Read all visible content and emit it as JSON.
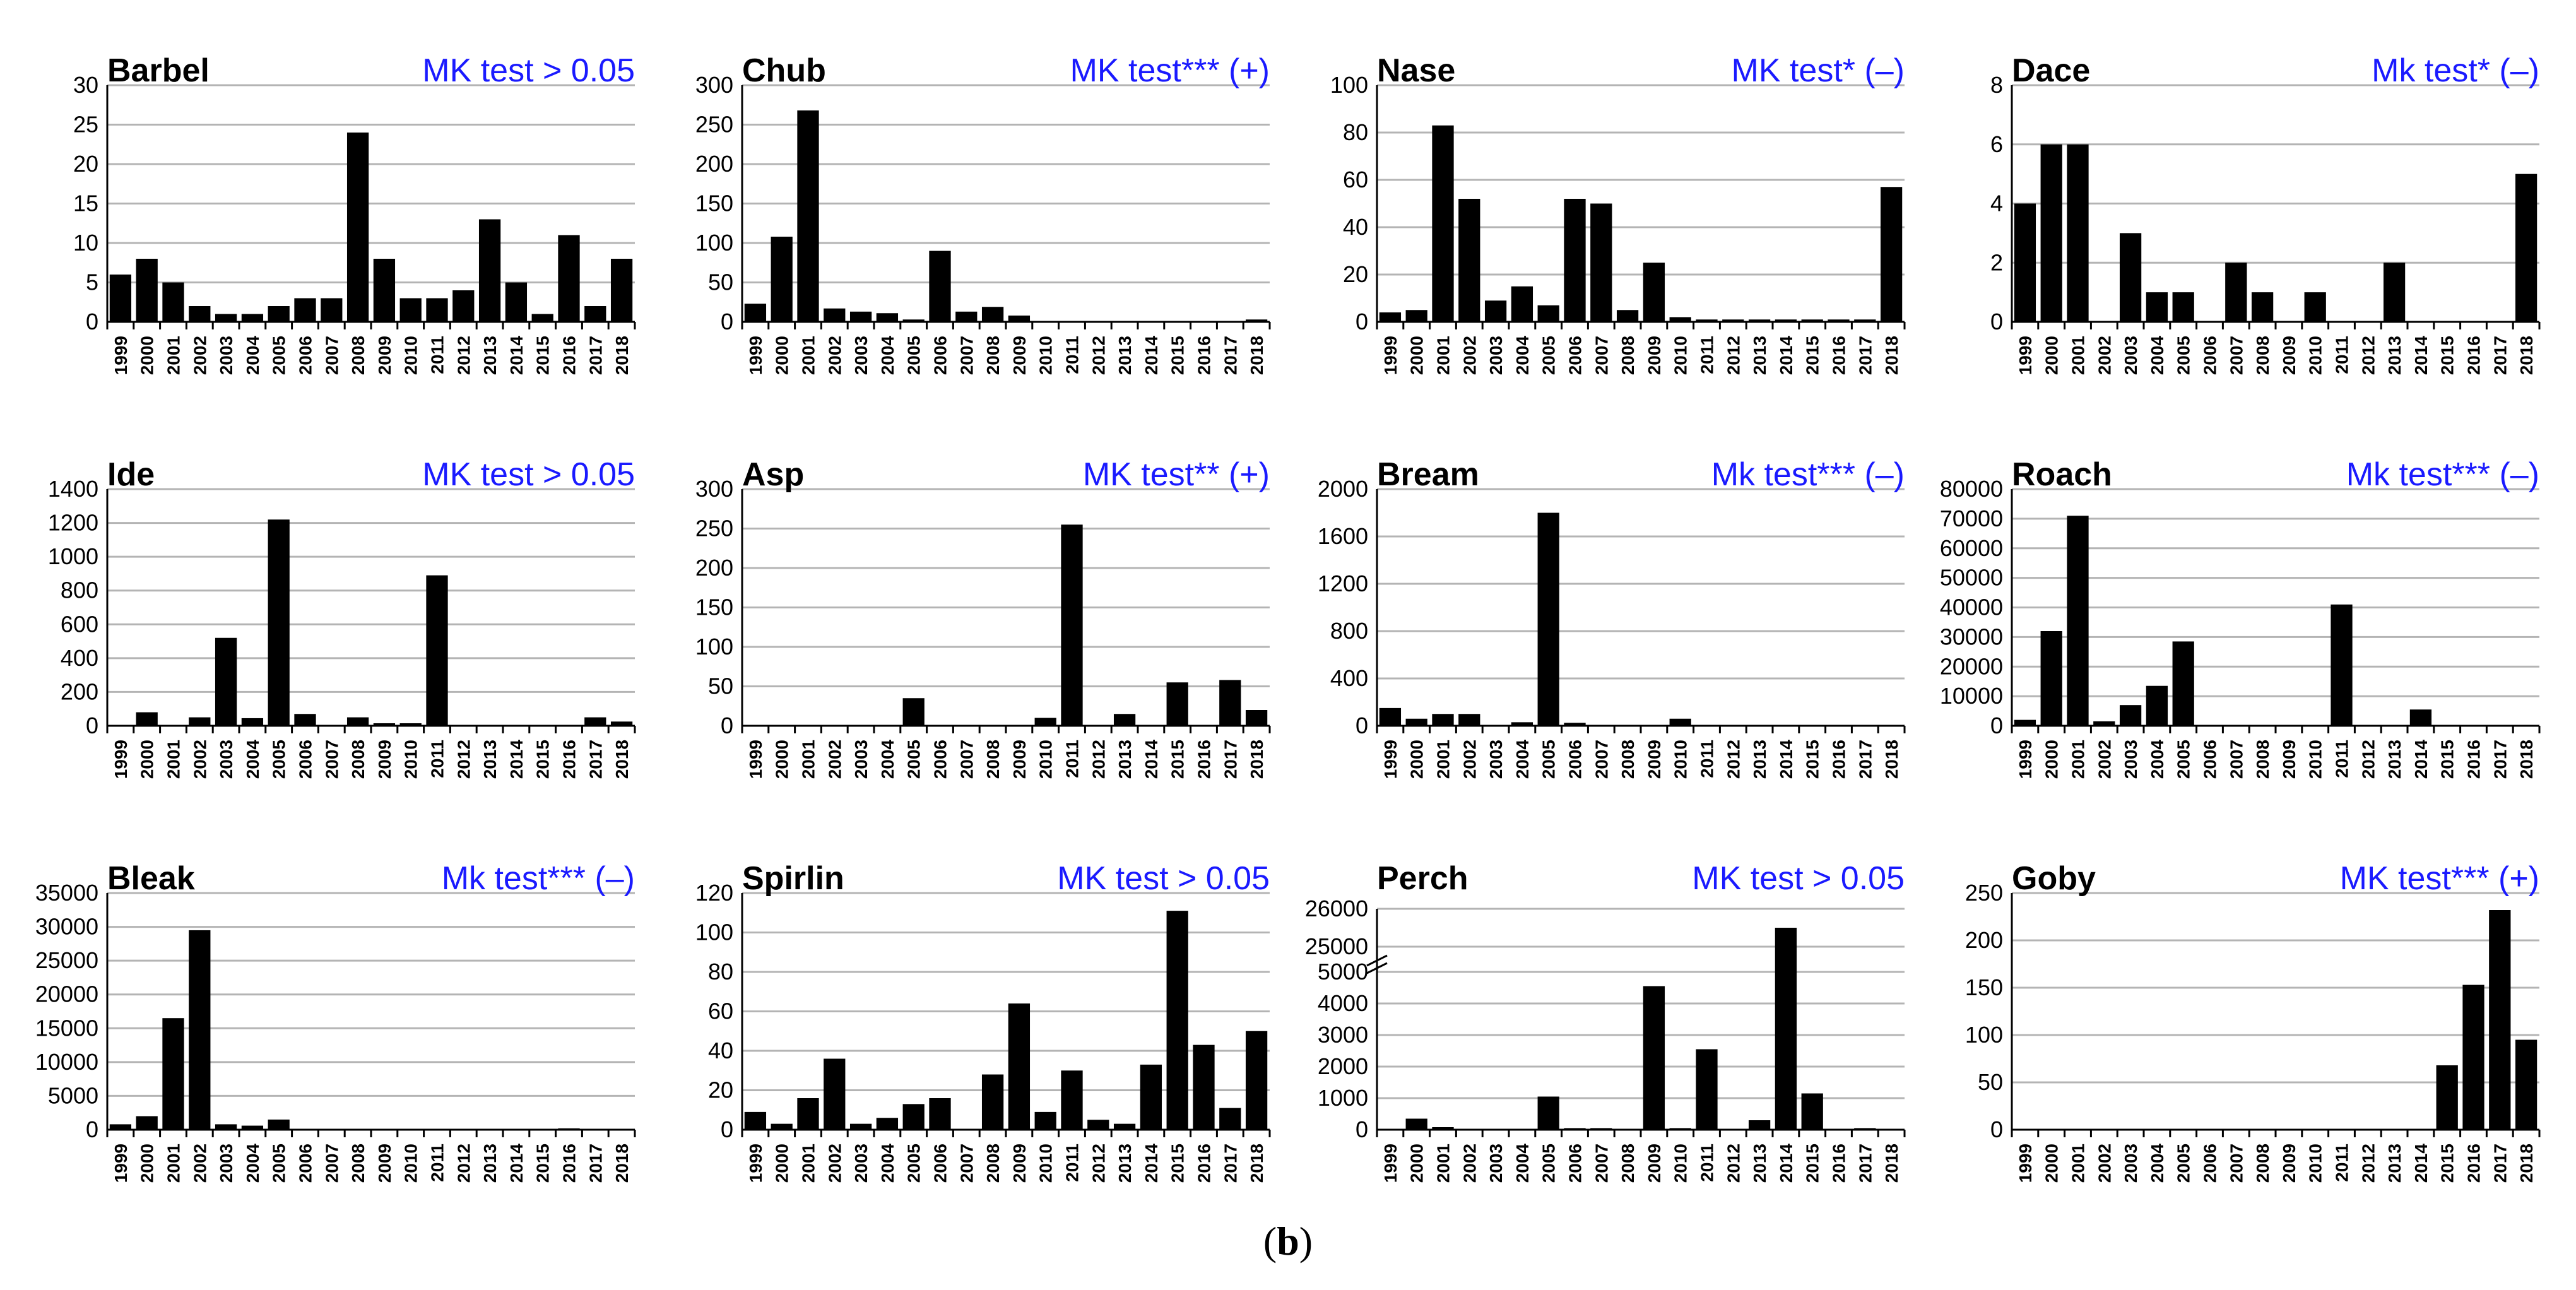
{
  "caption": {
    "open": "(",
    "letter": "b",
    "close": ")"
  },
  "colors": {
    "bar": "#000000",
    "grid": "#b4b4b4",
    "axis": "#000000",
    "mk_text": "#1a1aff",
    "title": "#000000"
  },
  "chart_data": [
    {
      "type": "bar",
      "title": "Barbel",
      "annotation": "MK test > 0.05",
      "categories": [
        "1999",
        "2000",
        "2001",
        "2002",
        "2003",
        "2004",
        "2005",
        "2006",
        "2007",
        "2008",
        "2009",
        "2010",
        "2011",
        "2012",
        "2013",
        "2014",
        "2015",
        "2016",
        "2017",
        "2018"
      ],
      "values": [
        6,
        8,
        5,
        2,
        1,
        1,
        2,
        3,
        3,
        24,
        8,
        3,
        3,
        4,
        13,
        5,
        1,
        11,
        2,
        8
      ],
      "ylim": [
        0,
        30
      ],
      "yticks": [
        0,
        5,
        10,
        15,
        20,
        25,
        30
      ],
      "ytick_labels": [
        "0",
        "5",
        "10",
        "15",
        "20",
        "25",
        "30"
      ],
      "grid": true
    },
    {
      "type": "bar",
      "title": "Chub",
      "annotation": "MK test*** (+)",
      "categories": [
        "1999",
        "2000",
        "2001",
        "2002",
        "2003",
        "2004",
        "2005",
        "2006",
        "2007",
        "2008",
        "2009",
        "2010",
        "2011",
        "2012",
        "2013",
        "2014",
        "2015",
        "2016",
        "2017",
        "2018"
      ],
      "values": [
        23,
        108,
        268,
        17,
        13,
        11,
        3,
        90,
        13,
        19,
        8,
        1,
        1,
        1,
        1,
        1,
        1,
        1,
        1,
        3
      ],
      "ylim": [
        0,
        300
      ],
      "yticks": [
        0,
        50,
        100,
        150,
        200,
        250,
        300
      ],
      "ytick_labels": [
        "0",
        "50",
        "100",
        "150",
        "200",
        "250",
        "300"
      ],
      "grid": true
    },
    {
      "type": "bar",
      "title": "Nase",
      "annotation": "MK test* (–)",
      "categories": [
        "1999",
        "2000",
        "2001",
        "2002",
        "2003",
        "2004",
        "2005",
        "2006",
        "2007",
        "2008",
        "2009",
        "2010",
        "2011",
        "2012",
        "2013",
        "2014",
        "2015",
        "2016",
        "2017",
        "2018"
      ],
      "values": [
        4,
        5,
        83,
        52,
        9,
        15,
        7,
        52,
        50,
        5,
        25,
        2,
        1,
        1,
        1,
        1,
        1,
        1,
        1,
        57
      ],
      "ylim": [
        0,
        100
      ],
      "yticks": [
        0,
        20,
        40,
        60,
        80,
        100
      ],
      "ytick_labels": [
        "0",
        "20",
        "40",
        "60",
        "80",
        "100"
      ],
      "grid": true
    },
    {
      "type": "bar",
      "title": "Dace",
      "annotation": "Mk test* (–)",
      "categories": [
        "1999",
        "2000",
        "2001",
        "2002",
        "2003",
        "2004",
        "2005",
        "2006",
        "2007",
        "2008",
        "2009",
        "2010",
        "2011",
        "2012",
        "2013",
        "2014",
        "2015",
        "2016",
        "2017",
        "2018"
      ],
      "values": [
        4,
        6,
        6,
        0,
        3,
        1,
        1,
        0,
        2,
        1,
        0,
        1,
        0,
        0,
        2,
        0,
        0,
        0,
        0,
        5
      ],
      "ylim": [
        0,
        8
      ],
      "yticks": [
        0,
        2,
        4,
        6,
        8
      ],
      "ytick_labels": [
        "0",
        "2",
        "4",
        "6",
        "8"
      ],
      "grid": true
    },
    {
      "type": "bar",
      "title": "Ide",
      "annotation": "MK test > 0.05",
      "categories": [
        "1999",
        "2000",
        "2001",
        "2002",
        "2003",
        "2004",
        "2005",
        "2006",
        "2007",
        "2008",
        "2009",
        "2010",
        "2011",
        "2012",
        "2013",
        "2014",
        "2015",
        "2016",
        "2017",
        "2018"
      ],
      "values": [
        5,
        80,
        5,
        50,
        520,
        45,
        1220,
        70,
        5,
        50,
        15,
        15,
        890,
        5,
        5,
        5,
        5,
        5,
        50,
        25
      ],
      "ylim": [
        0,
        1400
      ],
      "yticks": [
        0,
        200,
        400,
        600,
        800,
        1000,
        1200,
        1400
      ],
      "ytick_labels": [
        "0",
        "200",
        "400",
        "600",
        "800",
        "1000",
        "1200",
        "1400"
      ],
      "grid": true
    },
    {
      "type": "bar",
      "title": "Asp",
      "annotation": "MK test** (+)",
      "categories": [
        "1999",
        "2000",
        "2001",
        "2002",
        "2003",
        "2004",
        "2005",
        "2006",
        "2007",
        "2008",
        "2009",
        "2010",
        "2011",
        "2012",
        "2013",
        "2014",
        "2015",
        "2016",
        "2017",
        "2018"
      ],
      "values": [
        0,
        0,
        0,
        0,
        0,
        0,
        35,
        0,
        0,
        0,
        0,
        10,
        255,
        0,
        15,
        0,
        55,
        0,
        58,
        20
      ],
      "ylim": [
        0,
        300
      ],
      "yticks": [
        0,
        50,
        100,
        150,
        200,
        250,
        300
      ],
      "ytick_labels": [
        "0",
        "50",
        "100",
        "150",
        "200",
        "250",
        "300"
      ],
      "grid": true
    },
    {
      "type": "bar",
      "title": "Bream",
      "annotation": "Mk test*** (–)",
      "categories": [
        "1999",
        "2000",
        "2001",
        "2002",
        "2003",
        "2004",
        "2005",
        "2006",
        "2007",
        "2008",
        "2009",
        "2010",
        "2011",
        "2012",
        "2013",
        "2014",
        "2015",
        "2016",
        "2017",
        "2018"
      ],
      "values": [
        150,
        60,
        100,
        100,
        5,
        30,
        1800,
        25,
        5,
        5,
        5,
        60,
        5,
        5,
        5,
        5,
        5,
        5,
        5,
        5
      ],
      "ylim": [
        0,
        2000
      ],
      "yticks": [
        0,
        400,
        800,
        1200,
        1600,
        2000
      ],
      "ytick_labels": [
        "0",
        "400",
        "800",
        "1200",
        "1600",
        "2000"
      ],
      "grid": true
    },
    {
      "type": "bar",
      "title": "Roach",
      "annotation": "Mk test*** (–)",
      "categories": [
        "1999",
        "2000",
        "2001",
        "2002",
        "2003",
        "2004",
        "2005",
        "2006",
        "2007",
        "2008",
        "2009",
        "2010",
        "2011",
        "2012",
        "2013",
        "2014",
        "2015",
        "2016",
        "2017",
        "2018"
      ],
      "values": [
        2000,
        32000,
        71000,
        1500,
        7000,
        13500,
        28500,
        0,
        0,
        0,
        0,
        0,
        41000,
        0,
        0,
        5500,
        0,
        0,
        0,
        0
      ],
      "ylim": [
        0,
        80000
      ],
      "yticks": [
        0,
        10000,
        20000,
        30000,
        40000,
        50000,
        60000,
        70000,
        80000
      ],
      "ytick_labels": [
        "0",
        "10000",
        "20000",
        "30000",
        "40000",
        "50000",
        "60000",
        "70000",
        "80000"
      ],
      "grid": true
    },
    {
      "type": "bar",
      "title": "Bleak",
      "annotation": "Mk test*** (–)",
      "categories": [
        "1999",
        "2000",
        "2001",
        "2002",
        "2003",
        "2004",
        "2005",
        "2006",
        "2007",
        "2008",
        "2009",
        "2010",
        "2011",
        "2012",
        "2013",
        "2014",
        "2015",
        "2016",
        "2017",
        "2018"
      ],
      "values": [
        800,
        2000,
        16500,
        29500,
        800,
        600,
        1500,
        50,
        50,
        50,
        50,
        50,
        50,
        50,
        50,
        50,
        50,
        200,
        50,
        50
      ],
      "ylim": [
        0,
        35000
      ],
      "yticks": [
        0,
        5000,
        10000,
        15000,
        20000,
        25000,
        30000,
        35000
      ],
      "ytick_labels": [
        "0",
        "5000",
        "10000",
        "15000",
        "20000",
        "25000",
        "30000",
        "35000"
      ],
      "grid": true
    },
    {
      "type": "bar",
      "title": "Spirlin",
      "annotation": "MK test > 0.05",
      "categories": [
        "1999",
        "2000",
        "2001",
        "2002",
        "2003",
        "2004",
        "2005",
        "2006",
        "2007",
        "2008",
        "2009",
        "2010",
        "2011",
        "2012",
        "2013",
        "2014",
        "2015",
        "2016",
        "2017",
        "2018"
      ],
      "values": [
        9,
        3,
        16,
        36,
        3,
        6,
        13,
        16,
        0,
        28,
        64,
        9,
        30,
        5,
        3,
        33,
        111,
        43,
        11,
        50
      ],
      "ylim": [
        0,
        120
      ],
      "yticks": [
        0,
        20,
        40,
        60,
        80,
        100,
        120
      ],
      "ytick_labels": [
        "0",
        "20",
        "40",
        "60",
        "80",
        "100",
        "120"
      ],
      "grid": true
    },
    {
      "type": "bar",
      "title": "Perch",
      "annotation": "MK test > 0.05",
      "axis_break": true,
      "categories": [
        "1999",
        "2000",
        "2001",
        "2002",
        "2003",
        "2004",
        "2005",
        "2006",
        "2007",
        "2008",
        "2009",
        "2010",
        "2011",
        "2012",
        "2013",
        "2014",
        "2015",
        "2016",
        "2017",
        "2018"
      ],
      "values": [
        0,
        350,
        80,
        0,
        0,
        0,
        1050,
        50,
        50,
        0,
        4550,
        50,
        2550,
        0,
        300,
        25500,
        1150,
        0,
        50,
        0
      ],
      "ylim": [
        0,
        5000
      ],
      "yticks": [
        0,
        1000,
        2000,
        3000,
        4000,
        5000
      ],
      "ytick_labels": [
        "0",
        "1000",
        "2000",
        "3000",
        "4000",
        "5000"
      ],
      "upper_ytick_label": "25000",
      "top_ytick_label": "26000",
      "grid": true
    },
    {
      "type": "bar",
      "title": "Goby",
      "annotation": "MK test*** (+)",
      "categories": [
        "1999",
        "2000",
        "2001",
        "2002",
        "2003",
        "2004",
        "2005",
        "2006",
        "2007",
        "2008",
        "2009",
        "2010",
        "2011",
        "2012",
        "2013",
        "2014",
        "2015",
        "2016",
        "2017",
        "2018"
      ],
      "values": [
        0,
        0,
        0,
        0,
        0,
        0,
        0,
        0,
        0,
        0,
        0,
        0,
        0,
        0,
        0,
        0,
        68,
        153,
        232,
        95
      ],
      "ylim": [
        0,
        250
      ],
      "yticks": [
        0,
        50,
        100,
        150,
        200,
        250
      ],
      "ytick_labels": [
        "0",
        "50",
        "100",
        "150",
        "200",
        "250"
      ],
      "grid": true
    }
  ]
}
